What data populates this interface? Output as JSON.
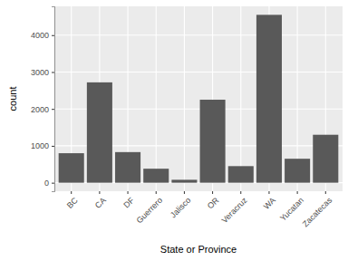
{
  "chart_data": {
    "type": "bar",
    "x_label": "State or Province",
    "y_label": "count",
    "categories": [
      "BC",
      "CA",
      "DF",
      "Guerrero",
      "Jalisco",
      "OR",
      "Veracruz",
      "WA",
      "Yucatan",
      "Zacatecas"
    ],
    "values": [
      800,
      2720,
      830,
      380,
      80,
      2250,
      450,
      4550,
      650,
      1300
    ],
    "color": "#595959",
    "ylim": [
      -230,
      4780
    ],
    "yticks": [
      0,
      1000,
      2000,
      3000,
      4000
    ],
    "grid": true
  }
}
